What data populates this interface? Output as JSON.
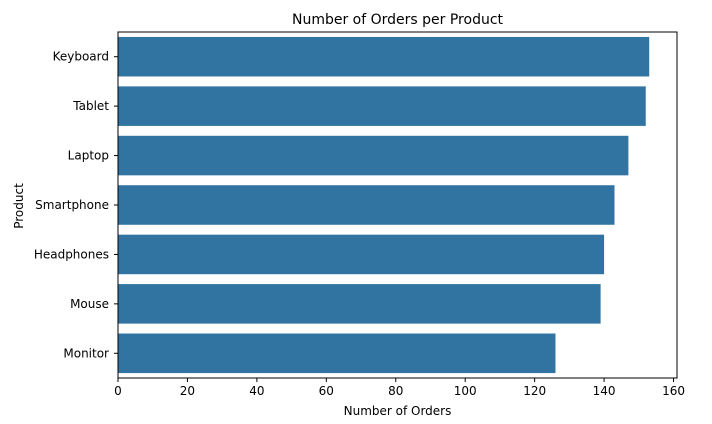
{
  "chart_data": {
    "type": "bar",
    "orientation": "horizontal",
    "title": "Number of Orders per Product",
    "xlabel": "Number of Orders",
    "ylabel": "Product",
    "categories": [
      "Keyboard",
      "Tablet",
      "Laptop",
      "Smartphone",
      "Headphones",
      "Mouse",
      "Monitor"
    ],
    "values": [
      153,
      152,
      147,
      143,
      140,
      139,
      126
    ],
    "xlim": [
      0,
      161
    ],
    "xticks": [
      0,
      20,
      40,
      60,
      80,
      100,
      120,
      140,
      160
    ],
    "grid": false,
    "legend": "none",
    "bar_color": "#3274a1"
  }
}
